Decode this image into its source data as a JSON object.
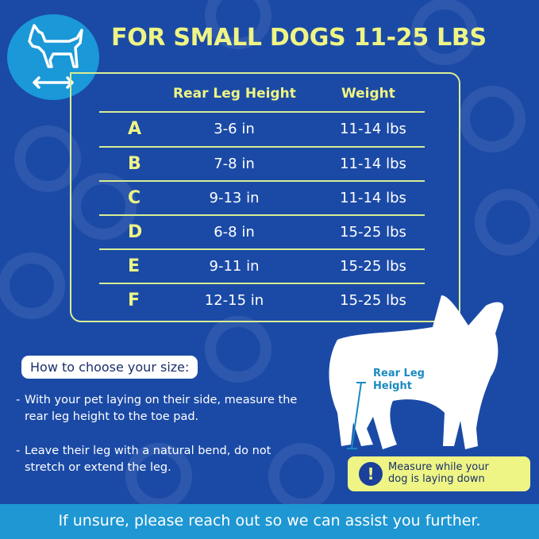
{
  "title": "FOR SMALL DOGS 11-25 LBS",
  "table": {
    "headers": [
      "Rear Leg Height",
      "Weight"
    ],
    "rows": [
      {
        "size": "A",
        "height": "3-6  in",
        "weight": "11-14 lbs"
      },
      {
        "size": "B",
        "height": "7-8 in",
        "weight": "11-14 lbs"
      },
      {
        "size": "C",
        "height": "9-13 in",
        "weight": "11-14 lbs"
      },
      {
        "size": "D",
        "height": "6-8 in",
        "weight": "15-25 lbs"
      },
      {
        "size": "E",
        "height": "9-11 in",
        "weight": "15-25 lbs"
      },
      {
        "size": "F",
        "height": "12-15 in",
        "weight": "15-25 lbs"
      }
    ]
  },
  "how_to": {
    "heading": "How to choose your size:",
    "bullets": [
      {
        "dash": "-",
        "text": "With your pet laying on their side, measure the rear leg height to the toe pad."
      },
      {
        "dash": "-",
        "text": "Leave their leg with a natural bend, do not stretch or extend the leg."
      }
    ]
  },
  "diagram": {
    "leg_label_1": "Rear Leg",
    "leg_label_2": "Height"
  },
  "note": {
    "icon": "exclamation-icon",
    "symbol": "!",
    "line1": "Measure while your",
    "line2": "dog is laying down"
  },
  "footer": "If unsure, please reach out so we can assist you further.",
  "colors": {
    "background": "#1b4aa6",
    "accent": "#eef585",
    "footer": "#1e97d3",
    "icon_circle": "#1a98d8"
  }
}
